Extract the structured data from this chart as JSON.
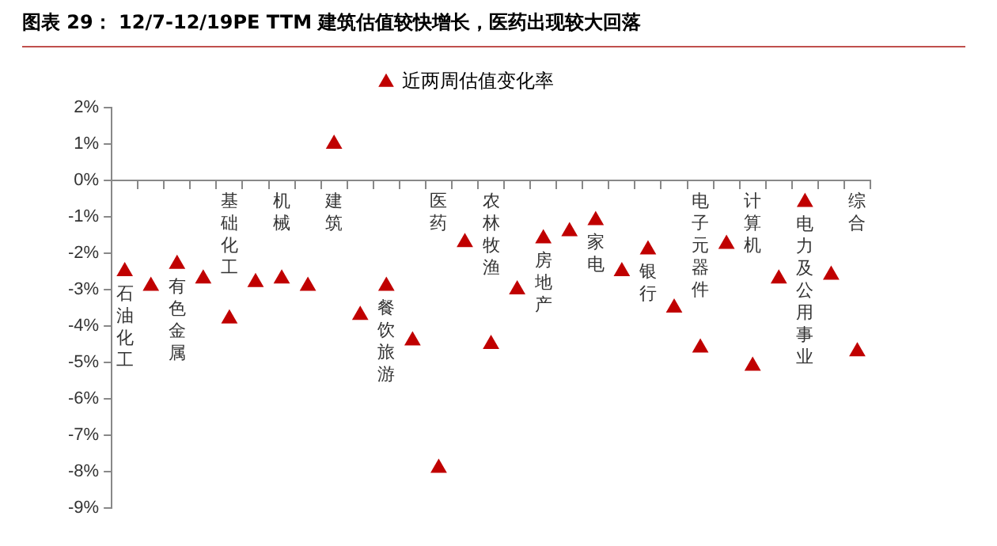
{
  "chart_data": {
    "type": "scatter",
    "title": "图表 29： 12/7-12/19PE TTM 建筑估值较快增长，医药出现较大回落",
    "categories": [
      "石油化工",
      null,
      "有色金属",
      null,
      "基础化工",
      null,
      "机械",
      null,
      "建筑",
      null,
      "餐饮旅游",
      null,
      "医药",
      null,
      "农林牧渔",
      null,
      "房地产",
      null,
      "家电",
      null,
      "银行",
      null,
      "电子元器件",
      null,
      "计算机",
      null,
      "电力及公用事业",
      null,
      "综合"
    ],
    "series": [
      {
        "name": "近两周估值变化率",
        "color": "#c00000",
        "values": [
          -2.5,
          -2.9,
          -2.3,
          -2.7,
          -3.8,
          -2.8,
          -2.7,
          -2.9,
          1.0,
          -3.7,
          -2.9,
          -4.4,
          -7.9,
          -1.7,
          -4.5,
          -3.0,
          -1.6,
          -1.4,
          -1.1,
          -2.5,
          -1.9,
          -3.5,
          -4.6,
          -1.75,
          -5.1,
          -2.7,
          -0.6,
          -2.6,
          -4.7
        ]
      }
    ],
    "ylim": [
      -9,
      2
    ],
    "yticks": [
      {
        "value": 2,
        "label": "2%"
      },
      {
        "value": 1,
        "label": "1%"
      },
      {
        "value": 0,
        "label": "0%"
      },
      {
        "value": -1,
        "label": "-1%"
      },
      {
        "value": -2,
        "label": "-2%"
      },
      {
        "value": -3,
        "label": "-3%"
      },
      {
        "value": -4,
        "label": "-4%"
      },
      {
        "value": -5,
        "label": "-5%"
      },
      {
        "value": -6,
        "label": "-6%"
      },
      {
        "value": -7,
        "label": "-7%"
      },
      {
        "value": -8,
        "label": "-8%"
      },
      {
        "value": -9,
        "label": "-9%"
      }
    ],
    "marker": "triangle",
    "legend": "top",
    "grid": false
  }
}
